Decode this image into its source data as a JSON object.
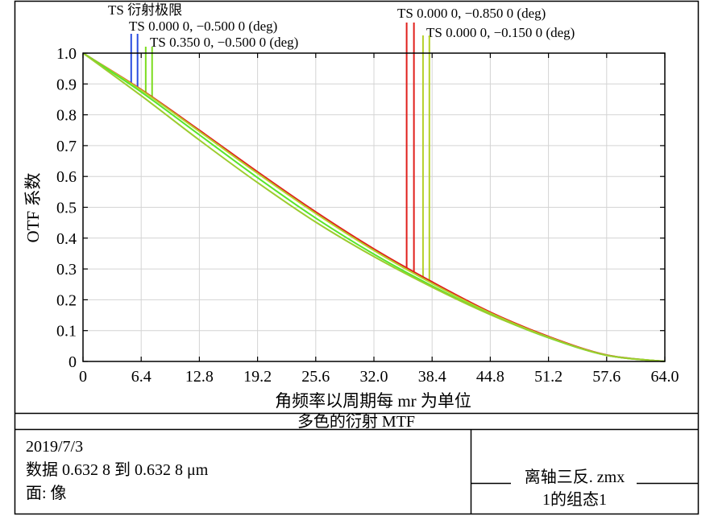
{
  "header": {
    "title": "TS 衍射极限",
    "legend": [
      {
        "label": "TS 0.000 0, −0.500 0 (deg)"
      },
      {
        "label": "TS 0.350 0, −0.500 0 (deg)"
      },
      {
        "label": "TS 0.000 0, −0.850 0 (deg)"
      },
      {
        "label": "TS 0.000 0, −0.150 0 (deg)"
      }
    ]
  },
  "chart_data": {
    "type": "line",
    "title": "多色的衍射 MTF",
    "xlabel": "角频率以周期每 mr 为单位",
    "ylabel": "OTF 系数",
    "xlim": [
      0,
      64
    ],
    "ylim": [
      0,
      1
    ],
    "x_ticks": [
      "0",
      "6.4",
      "12.8",
      "19.2",
      "25.6",
      "32.0",
      "38.4",
      "44.8",
      "51.2",
      "57.6",
      "64.0"
    ],
    "y_ticks": [
      "0",
      "0.1",
      "0.2",
      "0.3",
      "0.4",
      "0.5",
      "0.6",
      "0.7",
      "0.8",
      "0.9",
      "1.0"
    ],
    "grid": true,
    "cutoff_markers": [
      {
        "x": 5.3,
        "color": "#2a4de0"
      },
      {
        "x": 6.0,
        "color": "#2a4de0"
      },
      {
        "x": 6.9,
        "color": "#7bdc1e"
      },
      {
        "x": 7.6,
        "color": "#7bdc1e"
      },
      {
        "x": 35.6,
        "color": "#e0201c"
      },
      {
        "x": 36.4,
        "color": "#e0201c"
      },
      {
        "x": 37.4,
        "color": "#b5d02a"
      },
      {
        "x": 38.1,
        "color": "#b5d02a"
      }
    ],
    "x": [
      0,
      6.4,
      12.8,
      19.2,
      25.6,
      32.0,
      38.4,
      44.8,
      51.2,
      57.6,
      64.0
    ],
    "series": [
      {
        "color": "#e0201c",
        "values": [
          1.0,
          0.882,
          0.75,
          0.615,
          0.485,
          0.365,
          0.258,
          0.16,
          0.081,
          0.021,
          0.0
        ]
      },
      {
        "color": "#b5d02a",
        "values": [
          1.0,
          0.88,
          0.746,
          0.61,
          0.48,
          0.36,
          0.253,
          0.157,
          0.079,
          0.02,
          0.0
        ]
      },
      {
        "color": "#58e62c",
        "values": [
          1.0,
          0.874,
          0.735,
          0.596,
          0.465,
          0.348,
          0.245,
          0.153,
          0.077,
          0.02,
          0.0
        ]
      },
      {
        "color": "#9ccc2e",
        "values": [
          1.0,
          0.862,
          0.718,
          0.58,
          0.452,
          0.34,
          0.241,
          0.152,
          0.078,
          0.02,
          0.0
        ]
      }
    ]
  },
  "footer": {
    "date": "2019/7/3",
    "data_range": "数据 0.632 8 到 0.632 8 μm",
    "surface": "面: 像",
    "file_name": "离轴三反. zmx",
    "config": "1的组态1"
  }
}
